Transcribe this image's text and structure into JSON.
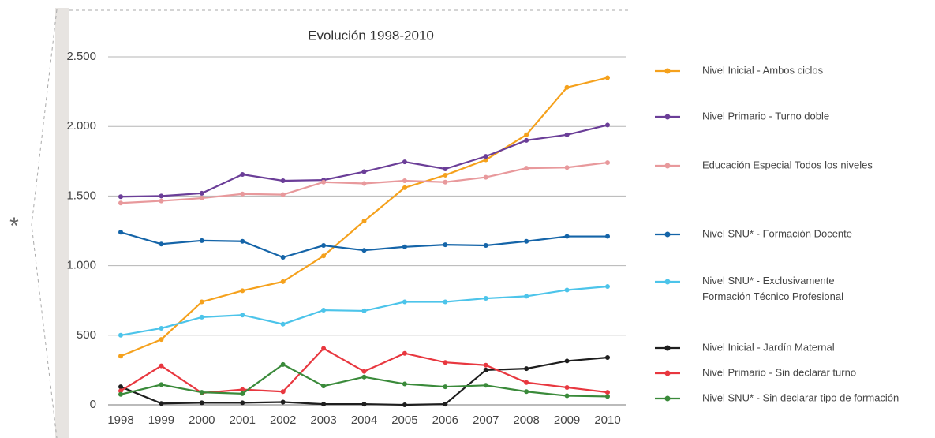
{
  "side_mark": "*",
  "chart_data": {
    "type": "line",
    "title": "Evolución 1998-2010",
    "x": [
      1998,
      1999,
      2000,
      2001,
      2002,
      2003,
      2004,
      2005,
      2006,
      2007,
      2008,
      2009,
      2010
    ],
    "xlim": [
      1998,
      2010
    ],
    "ylim": [
      0,
      2500
    ],
    "yticks": [
      0,
      500,
      {
        "value": 1000,
        "label": "1.000"
      },
      {
        "value": 1500,
        "label": "1.500"
      },
      {
        "value": 2000,
        "label": "2.000"
      },
      {
        "value": 2500,
        "label": "2.500"
      }
    ],
    "grid": true,
    "legend": "right",
    "series": [
      {
        "name": "Nivel Inicial - Ambos ciclos",
        "color": "#f5a11c",
        "values": [
          350,
          470,
          740,
          820,
          885,
          1070,
          1320,
          1560,
          1650,
          1760,
          1940,
          2280,
          2350
        ]
      },
      {
        "name": "Nivel Primario - Turno doble",
        "color": "#6b3e98",
        "values": [
          1495,
          1500,
          1520,
          1655,
          1610,
          1615,
          1675,
          1745,
          1695,
          1785,
          1900,
          1940,
          2010
        ]
      },
      {
        "name": "Educación Especial Todos los niveles",
        "color": "#e8999c",
        "values": [
          1450,
          1465,
          1485,
          1515,
          1510,
          1600,
          1590,
          1610,
          1600,
          1635,
          1700,
          1705,
          1740
        ]
      },
      {
        "name": "Nivel SNU* - Formación Docente",
        "color": "#1464a8",
        "values": [
          1240,
          1155,
          1180,
          1175,
          1060,
          1145,
          1110,
          1135,
          1150,
          1145,
          1175,
          1210,
          1210
        ]
      },
      {
        "name": "Nivel SNU* - Exclusivamente\nFormación Técnico Profesional",
        "color": "#4cc4ea",
        "values": [
          500,
          550,
          630,
          645,
          580,
          680,
          675,
          740,
          740,
          765,
          780,
          825,
          850
        ]
      },
      {
        "name": "Nivel Inicial - Jardín Maternal",
        "color": "#1e1e1e",
        "values": [
          130,
          10,
          15,
          15,
          20,
          5,
          5,
          0,
          5,
          250,
          260,
          315,
          340
        ]
      },
      {
        "name": "Nivel Primario - Sin declarar turno",
        "color": "#e8373f",
        "values": [
          100,
          280,
          85,
          110,
          95,
          405,
          240,
          370,
          305,
          285,
          160,
          125,
          90
        ]
      },
      {
        "name": "Nivel SNU* - Sin declarar tipo de formación",
        "color": "#3a8a3a",
        "values": [
          75,
          145,
          90,
          80,
          290,
          135,
          200,
          150,
          130,
          140,
          95,
          65,
          60
        ]
      }
    ]
  }
}
